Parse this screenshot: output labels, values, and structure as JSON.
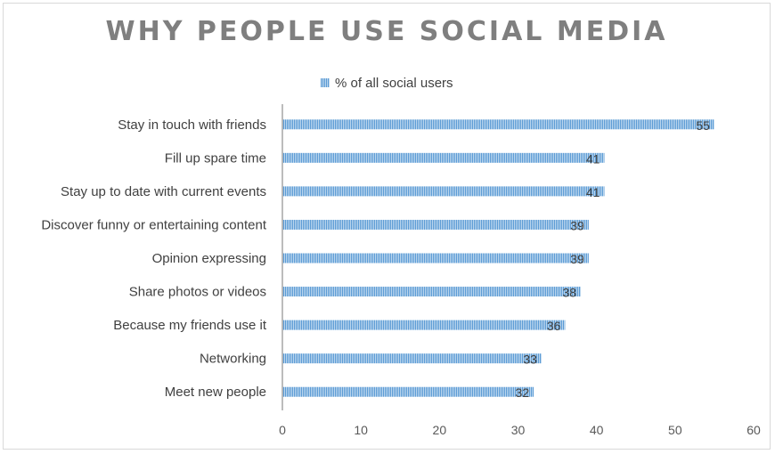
{
  "chart_data": {
    "type": "bar",
    "orientation": "horizontal",
    "title": "WHY PEOPLE USE SOCIAL MEDIA",
    "categories": [
      "Stay in touch with friends",
      "Fill up spare time",
      "Stay up to date with current events",
      "Discover funny or entertaining content",
      "Opinion expressing",
      "Share photos or videos",
      "Because my friends use it",
      "Networking",
      "Meet new people"
    ],
    "series": [
      {
        "name": "% of all social users",
        "values": [
          55,
          41,
          41,
          39,
          39,
          38,
          36,
          33,
          32
        ]
      }
    ],
    "xlim": [
      0,
      60
    ],
    "xticks": [
      0,
      10,
      20,
      30,
      40,
      50,
      60
    ],
    "legend_position": "top",
    "grid": false,
    "colors": {
      "bar_stroke": "#5b9bd5",
      "bar_fill": "#bdd7ee",
      "title": "#7f7f7f"
    }
  }
}
